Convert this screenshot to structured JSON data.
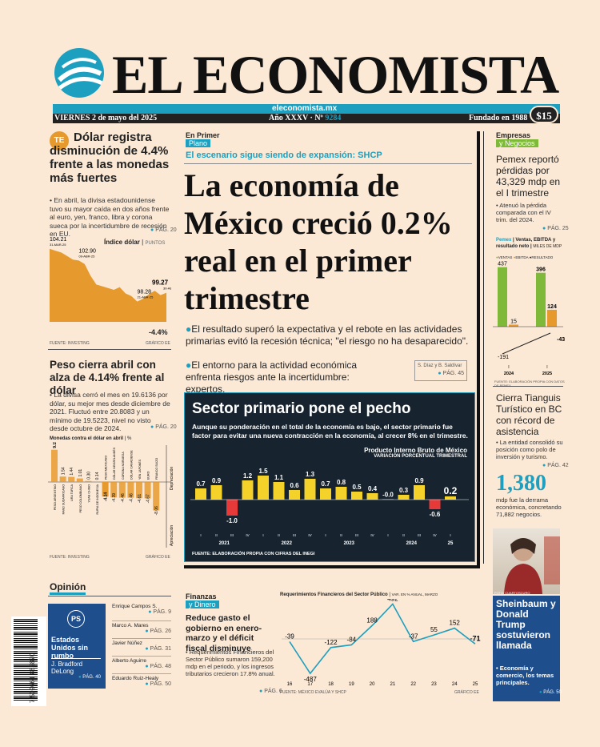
{
  "masthead": {
    "title": "EL ECONOMISTA",
    "date": "VIERNES 2 de mayo del 2025",
    "url": "eleconomista.mx",
    "year": "Año XXXV · Nº",
    "issue": "9284",
    "founded": "Fundado en 1988",
    "price": "$15"
  },
  "left_top": {
    "headline": "Dólar registra disminución de 4.4% frente a las monedas más fuertes",
    "body": "En abril, la divisa estadounidense tuvo su mayor caída en dos años frente al euro, yen, franco, libra y corona sueca por la incertidumbre de recesión en EU.",
    "page": "PÁG. 20",
    "chart_title": "Índice dólar",
    "chart_unit": "PUNTOS",
    "source": "FUENTE: INVESTING",
    "credit": "GRÁFICO EE",
    "change": "-4.4%"
  },
  "left_mid": {
    "headline": "Peso cierra abril con alza de 4.14% frente al dólar",
    "body": "La divisa cerró el mes en 19.6136 por dólar, su mejor mes desde diciembre de 2021. Fluctuó entre 20.8083 y un mínimo de 19.5223, nivel no visto desde octubre de 2024.",
    "page": "PÁG. 20",
    "chart_title": "Monedas contra el dólar en abril",
    "chart_unit": "%",
    "dep": "Depreciación",
    "apr": "Apreciación",
    "source": "FUENTE: INVESTING",
    "credit": "GRÁFICO EE"
  },
  "center": {
    "kicker": "En Primer",
    "kicker2": "Plano",
    "dek": "El escenario sigue siendo de expansión: SHCP",
    "headline": "La economía de México creció 0.2% real en el primer trimestre",
    "bullet1": "El resultado superó la expectativa y el rebote en las actividades primarias evitó la recesión técnica; \"el riesgo no ha desaparecido\".",
    "bullet2": "El entorno para la actividad económica enfrenta riesgos ante la incertidumbre: expertos.",
    "authors": "S. Díaz y B. Saldívar",
    "page": "PÁG. 45"
  },
  "pib": {
    "title": "Sector primario pone el pecho",
    "intro": "Aunque su ponderación en el total de la economía es bajo, el sector primario fue factor para evitar una nueva contracción en la economía, al crecer 8% en el trimestre.",
    "chart_title": "Producto Interno Bruto de México",
    "chart_sub": "VARIACIÓN PORCENTUAL TRIMESTRAL",
    "source": "FUENTE: ELABORACIÓN PROPIA CON CIFRAS DEL INEGI"
  },
  "right": {
    "section": "Empresas",
    "section2": "y Negocios",
    "headline": "Pemex reportó pérdidas por 43,329 mdp en el I trimestre",
    "body": "Atenuó la pérdida comparada con el IV trim. del 2024.",
    "page": "PÁG. 25",
    "chart_title": "Pemex",
    "chart_title2": "Ventas, EBITDA y resultado neto",
    "chart_unit": "MILES DE MDP",
    "legend": [
      "VENTAS",
      "EBITDA",
      "RESULTADO"
    ],
    "chart_source": "FUENTE: ELABORACIÓN PROPIA CON DATOS DE PEMEX",
    "h2": "Cierra Tianguis Turístico en BC con récord de asistencia",
    "body2": "La entidad consolidó su posición como polo de inversión y turismo.",
    "page2": "PÁG. 42",
    "big": "1,380",
    "big_text": "mdp fue la derrama económica, concretando 71,882 negocios.",
    "photo_credit": "FOTO: CUARTOSCURO",
    "h3": "Sheinbaum y Donald Trump sostuvieron llamada",
    "body3": "Economía y comercio, los temas principales.",
    "page3": "PÁG. 50"
  },
  "opinion": {
    "label": "Opinión",
    "featured_title": "Estados Unidos sin rumbo",
    "featured_author": "J. Bradford DeLong",
    "featured_page": "PÁG. 40",
    "items": [
      {
        "name": "Enrique Campos S.",
        "page": "PÁG. 9"
      },
      {
        "name": "Marco A. Mares",
        "page": "PÁG. 26"
      },
      {
        "name": "Javier Núñez",
        "page": "PÁG. 31"
      },
      {
        "name": "Alberto Aguirre",
        "page": "PÁG. 48"
      },
      {
        "name": "Eduardo Ruiz-Healy",
        "page": "PÁG. 50"
      }
    ],
    "barcode": "7 509661 885870"
  },
  "finanzas": {
    "section": "Finanzas",
    "section2": "y Dinero",
    "headline": "Reduce gasto el gobierno en enero-marzo y el déficit fiscal disminuye",
    "body": "Requerimientos Financieros del Sector Público sumaron 159,200 mdp en el periodo, y los ingresos tributarios crecieron 17.8% anual.",
    "page": "PÁG. 6",
    "chart_title": "Requerimientos Financieros del Sector Público",
    "chart_unit": "VAR. EN % ANUAL, MARZO",
    "source": "FUENTE: MÉXICO EVALÚA Y SHCP",
    "credit": "GRÁFICO EE"
  },
  "chart_data": [
    {
      "type": "area",
      "title": "Índice dólar",
      "ylabel": "PUNTOS",
      "annotations": [
        {
          "label": "104.21",
          "date": "31-MAR-25"
        },
        {
          "label": "102.90",
          "date": "09-ABR-25"
        },
        {
          "label": "98.28",
          "date": "21-ABR-25"
        },
        {
          "label": "99.27",
          "date": "30-ABR-25"
        }
      ],
      "values": [
        104.21,
        104.0,
        103.8,
        103.4,
        103.0,
        102.9,
        102.5,
        101.2,
        100.2,
        100.0,
        99.8,
        99.6,
        99.9,
        99.2,
        98.9,
        98.28,
        98.6,
        99.1,
        99.5,
        99.0,
        99.27
      ]
    },
    {
      "type": "bar",
      "title": "Monedas contra el dólar en abril",
      "ylabel": "%",
      "categories": [
        "PESO ARGENTINO",
        "RAND SUDAFRICANO",
        "LIRA TURCA",
        "PESO COLOMBIANO",
        "YUAN CHINO",
        "RUPIA DE INDONESIA",
        "PESO MEXICANO",
        "DÓLAR NEOZELANDÉS",
        "CORONA NORUEGA",
        "DÓLAR CANADIENSE",
        "YEN JAPONÉS",
        "EURO",
        "FRANCO SUIZO"
      ],
      "values": [
        9.15,
        1.54,
        1.44,
        1.01,
        0.3,
        0.14,
        -4.14,
        -4.39,
        -4.46,
        -4.46,
        -4.61,
        -4.67,
        -8.06
      ]
    },
    {
      "type": "bar",
      "title": "Producto Interno Bruto de México",
      "categories": [
        "I-2021",
        "II",
        "III",
        "IV",
        "I-2022",
        "II",
        "III",
        "IV",
        "I-2023",
        "II",
        "III",
        "IV",
        "I-2024",
        "II",
        "III",
        "IV",
        "I-2025"
      ],
      "values": [
        0.7,
        0.9,
        -1.0,
        1.2,
        1.5,
        1.1,
        0.6,
        1.3,
        0.7,
        0.8,
        0.5,
        0.4,
        -0.0,
        0.3,
        0.9,
        -0.6,
        0.2
      ]
    },
    {
      "type": "bar",
      "title": "Pemex Ventas, EBITDA y resultado neto",
      "categories": [
        "I 2024",
        "I 2025"
      ],
      "series": [
        {
          "name": "VENTAS",
          "values": [
            437,
            396
          ]
        },
        {
          "name": "EBITDA",
          "values": [
            15,
            124
          ]
        },
        {
          "name": "RESULTADO",
          "values": [
            -191,
            -43
          ]
        }
      ]
    },
    {
      "type": "line",
      "title": "Requerimientos Financieros del Sector Público",
      "x": [
        "16",
        "17",
        "18",
        "19",
        "20",
        "21",
        "22",
        "23",
        "24",
        "25"
      ],
      "values": [
        -39,
        -487,
        -122,
        -84,
        188,
        492,
        -37,
        55,
        152,
        -71
      ]
    }
  ]
}
